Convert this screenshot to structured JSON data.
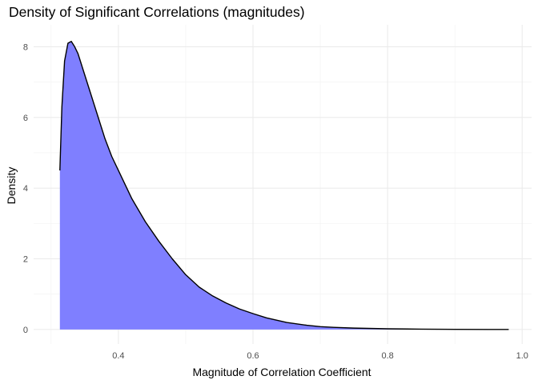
{
  "chart_data": {
    "type": "area",
    "title": "Density of Significant Correlations (magnitudes)",
    "xlabel": "Magnitude of Correlation Coefficient",
    "ylabel": "Density",
    "xlim": [
      0.274,
      1.014
    ],
    "ylim": [
      -0.41,
      8.62
    ],
    "x_ticks": [
      0.4,
      0.6,
      0.8,
      1.0
    ],
    "x_tick_labels": [
      "0.4",
      "0.6",
      "0.8",
      "1.0"
    ],
    "y_ticks": [
      0,
      2,
      4,
      6,
      8
    ],
    "y_tick_labels": [
      "0",
      "2",
      "4",
      "6",
      "8"
    ],
    "grid": true,
    "series": [
      {
        "fill": "#7f7fff",
        "line": "#000000",
        "x": [
          0.313,
          0.316,
          0.32,
          0.325,
          0.33,
          0.335,
          0.34,
          0.35,
          0.36,
          0.37,
          0.38,
          0.39,
          0.4,
          0.42,
          0.44,
          0.46,
          0.48,
          0.5,
          0.52,
          0.54,
          0.56,
          0.58,
          0.6,
          0.62,
          0.65,
          0.68,
          0.7,
          0.72,
          0.75,
          0.8,
          0.85,
          0.9,
          0.95,
          0.98
        ],
        "y": [
          4.5,
          6.3,
          7.6,
          8.1,
          8.15,
          8.0,
          7.8,
          7.2,
          6.6,
          6.0,
          5.4,
          4.9,
          4.5,
          3.7,
          3.05,
          2.5,
          2.0,
          1.55,
          1.2,
          0.95,
          0.75,
          0.58,
          0.45,
          0.33,
          0.2,
          0.12,
          0.08,
          0.06,
          0.04,
          0.02,
          0.01,
          0.005,
          0.002,
          0.001
        ]
      }
    ]
  }
}
